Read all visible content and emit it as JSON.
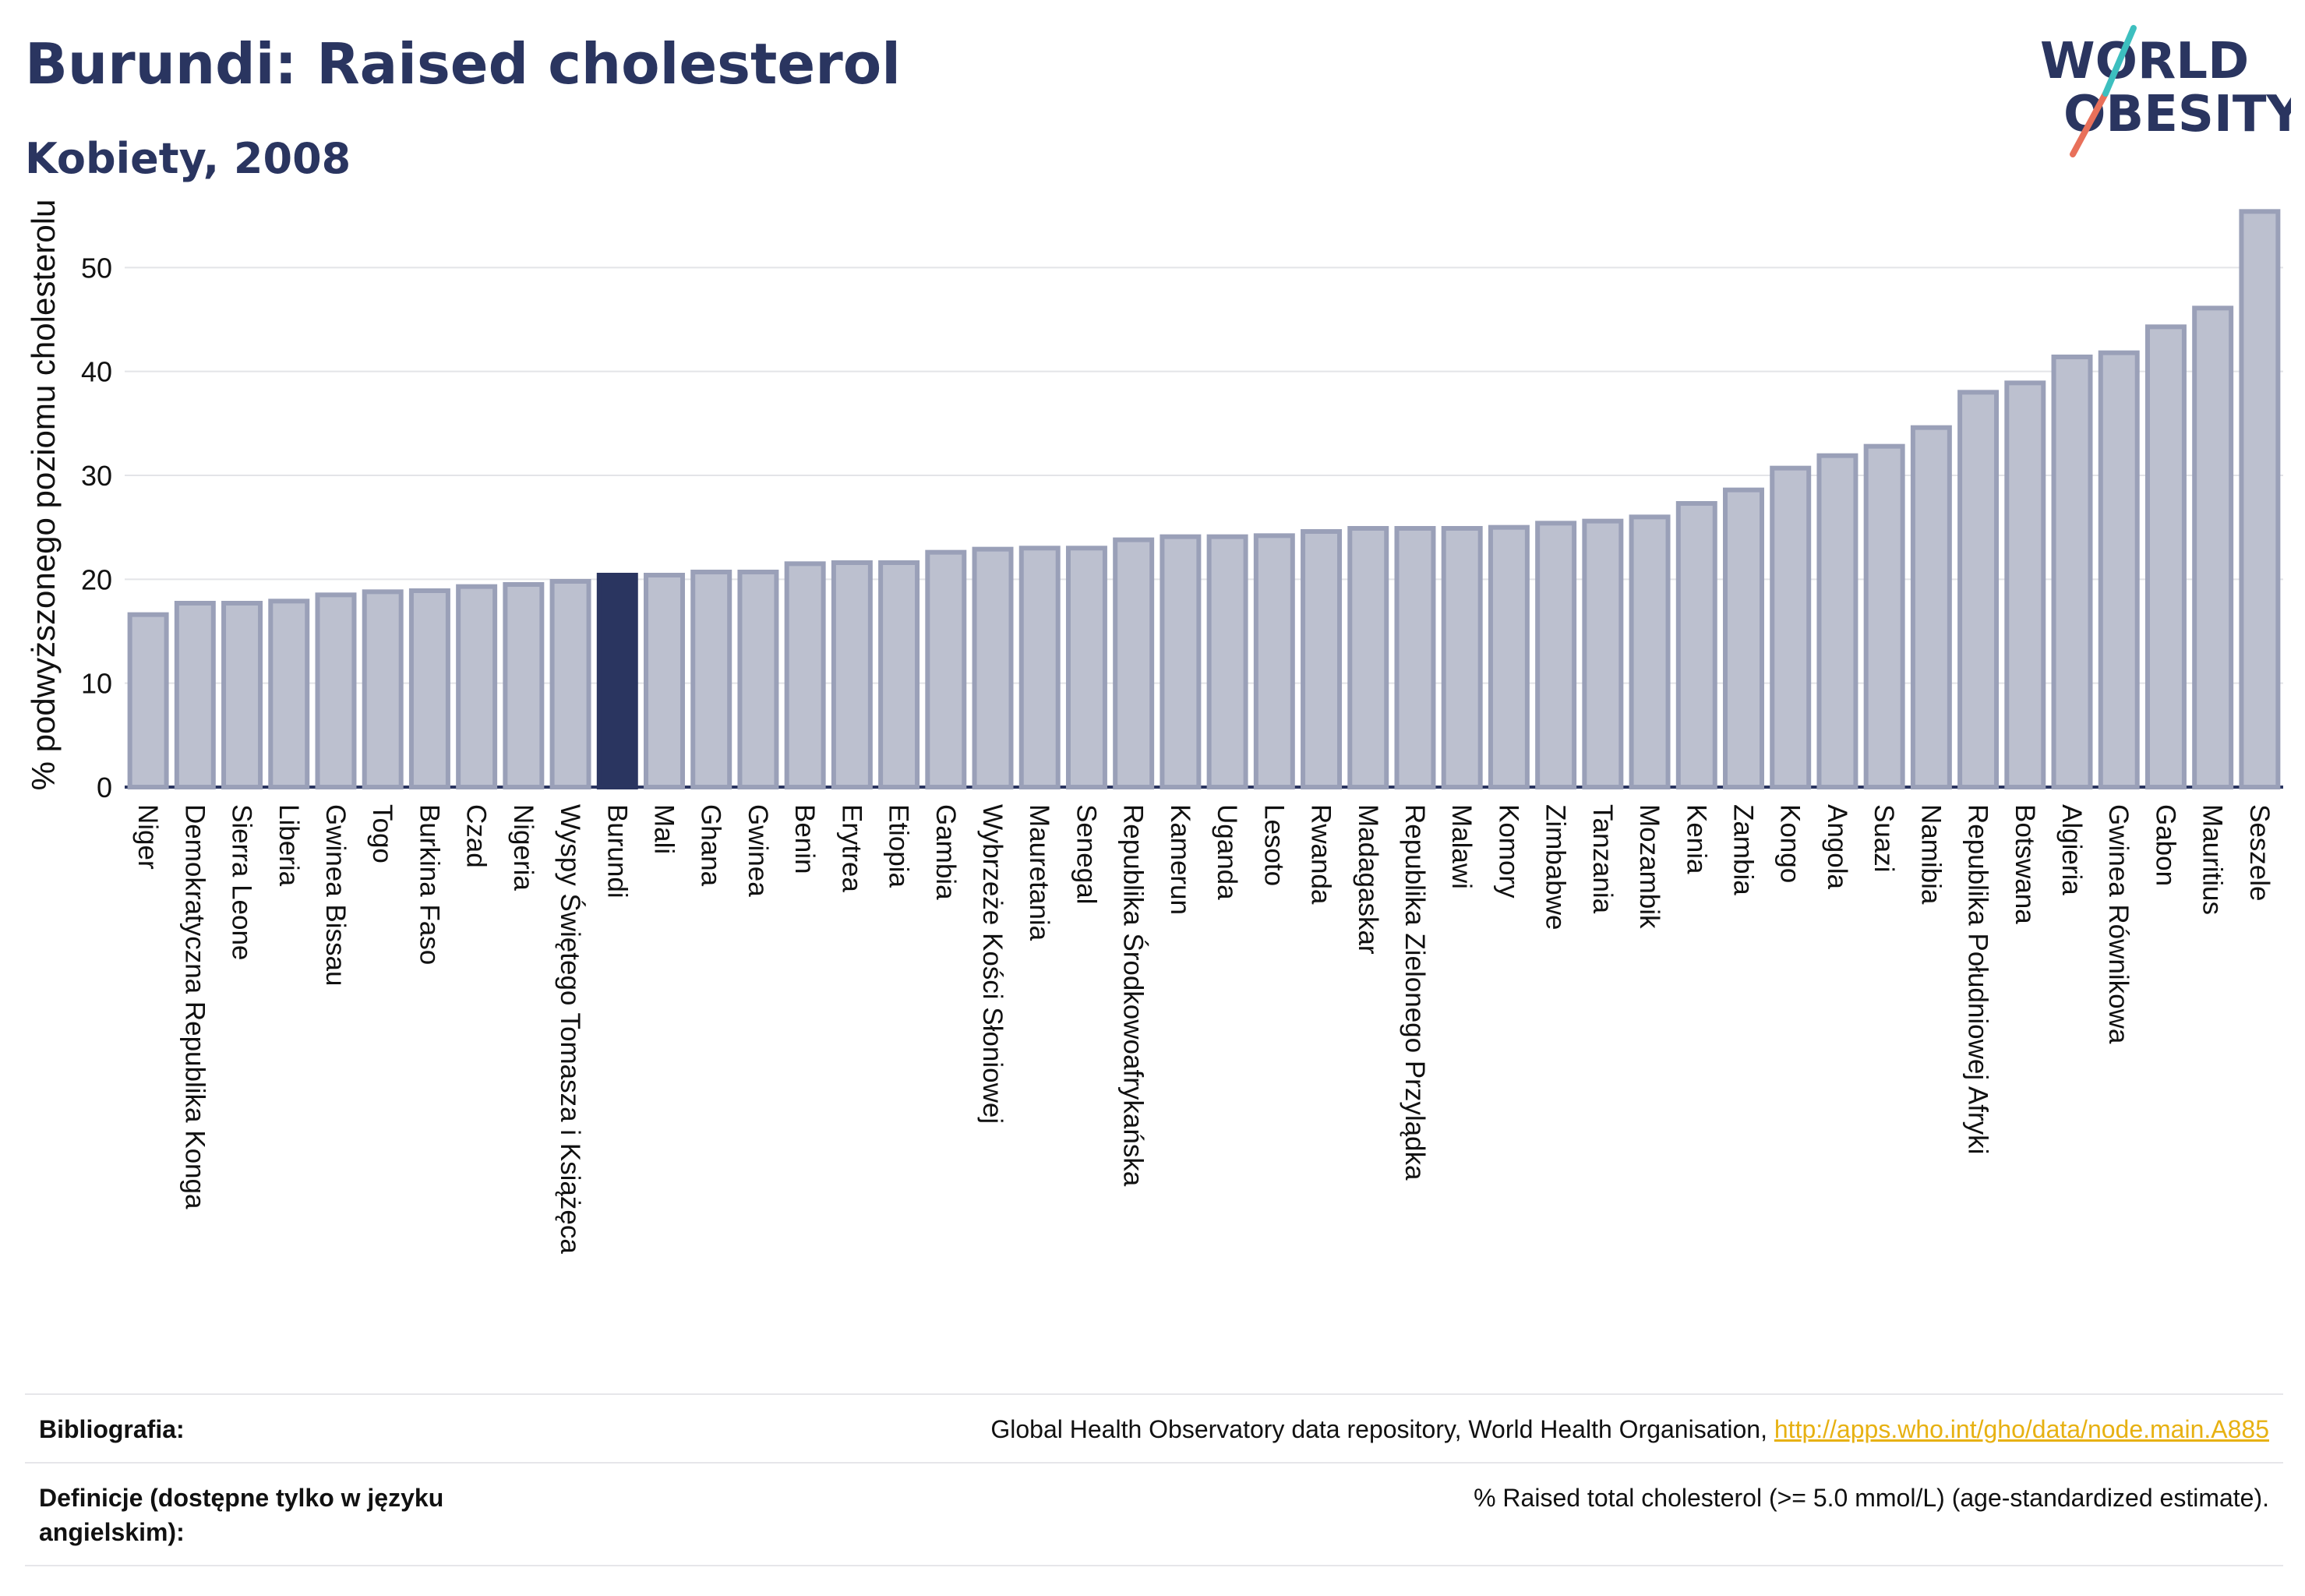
{
  "header": {
    "title": "Burundi: Raised cholesterol",
    "subtitle": "Kobiety, 2008"
  },
  "logo": {
    "line1": "WORLD",
    "line2": "OBESITY"
  },
  "chart_data": {
    "type": "bar",
    "ylabel": "% podwyższonego poziomu cholesterolu",
    "ylim": [
      0,
      57
    ],
    "yticks": [
      0,
      10,
      20,
      30,
      40,
      50
    ],
    "grid": true,
    "highlight": "Burundi",
    "categories": [
      "Niger",
      "Demokratyczna Republika Konga",
      "Sierra Leone",
      "Liberia",
      "Gwinea Bissau",
      "Togo",
      "Burkina Faso",
      "Czad",
      "Nigeria",
      "Wyspy Świętego Tomasza i Książęca",
      "Burundi",
      "Mali",
      "Ghana",
      "Gwinea",
      "Benin",
      "Erytrea",
      "Etiopia",
      "Gambia",
      "Wybrzeże Kości Słoniowej",
      "Mauretania",
      "Senegal",
      "Republika Środkowoafrykańska",
      "Kamerun",
      "Uganda",
      "Lesoto",
      "Rwanda",
      "Madagaskar",
      "Republika Zielonego Przylądka",
      "Malawi",
      "Komory",
      "Zimbabwe",
      "Tanzania",
      "Mozambik",
      "Kenia",
      "Zambia",
      "Kongo",
      "Angola",
      "Suazi",
      "Namibia",
      "Republika Południowej Afryki",
      "Botswana",
      "Algieria",
      "Gwinea Równikowa",
      "Gabon",
      "Mauritius",
      "Seszele"
    ],
    "values": [
      16.6,
      17.7,
      17.7,
      17.9,
      18.5,
      18.8,
      18.9,
      19.3,
      19.5,
      19.8,
      20.4,
      20.4,
      20.7,
      20.7,
      21.5,
      21.6,
      21.6,
      22.6,
      22.9,
      23.0,
      23.0,
      23.8,
      24.1,
      24.1,
      24.2,
      24.6,
      24.9,
      24.9,
      24.9,
      25.0,
      25.4,
      25.6,
      26.0,
      27.3,
      28.6,
      30.7,
      31.9,
      32.8,
      34.6,
      38.0,
      38.9,
      41.4,
      41.8,
      44.3,
      46.1,
      55.4
    ],
    "colors": {
      "default": "#bcc0cf",
      "default_stroke": "#9aa0b8",
      "highlight": "#2a3560"
    }
  },
  "footer": {
    "rows": [
      {
        "label": "Bibliografia:",
        "value": "Global Health Observatory data repository, World Health Organisation, ",
        "link": "http://apps.who.int/gho/data/node.main.A885"
      },
      {
        "label": "Definicje (dostępne tylko w języku angielskim):",
        "value": "% Raised total cholesterol (>= 5.0 mmol/L) (age-standardized estimate).",
        "link": ""
      }
    ]
  }
}
